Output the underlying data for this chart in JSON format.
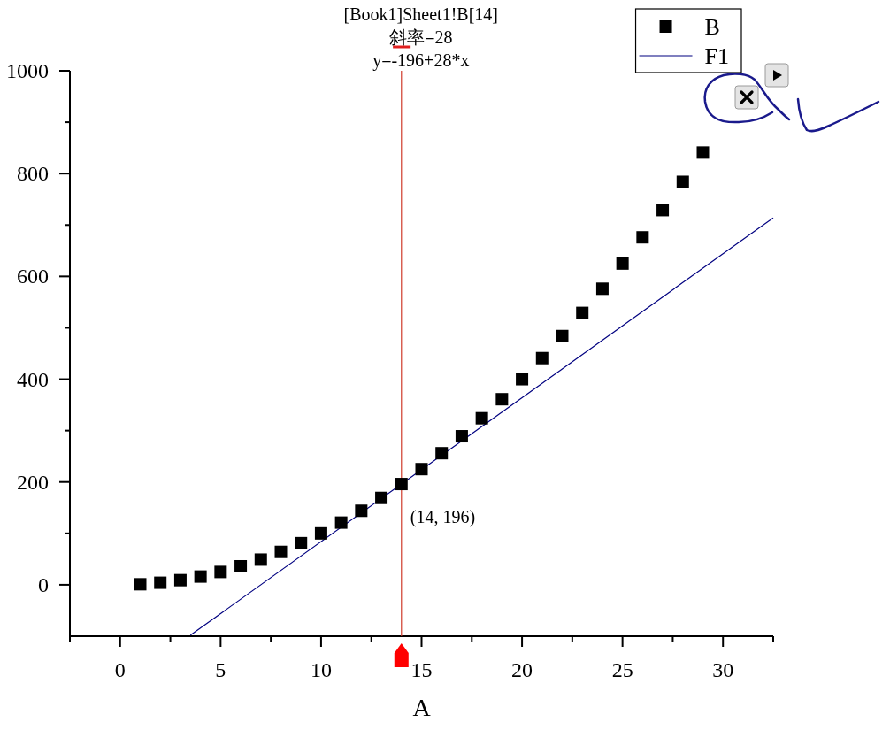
{
  "chart_data": {
    "type": "scatter",
    "xlabel": "A",
    "marker": "square",
    "legend": "top right",
    "x": [
      1,
      2,
      3,
      4,
      5,
      6,
      7,
      8,
      9,
      10,
      11,
      12,
      13,
      14,
      15,
      16,
      17,
      18,
      19,
      20,
      21,
      22,
      23,
      24,
      25,
      26,
      27,
      28,
      29
    ],
    "series": [
      {
        "name": "B",
        "color": "#000000",
        "values": [
          1,
          4,
          9,
          16,
          25,
          36,
          49,
          64,
          81,
          100,
          121,
          144,
          169,
          196,
          225,
          256,
          289,
          324,
          361,
          400,
          441,
          484,
          529,
          576,
          625,
          676,
          729,
          784,
          841
        ]
      },
      {
        "name": "F1",
        "type": "line",
        "color": "#000080",
        "marker": "none",
        "line_style": "solid",
        "x": [
          3.5,
          32.5
        ],
        "values": [
          -98,
          714
        ]
      }
    ],
    "xlim": [
      -2.5,
      32.5
    ],
    "ylim": [
      -100,
      1000
    ],
    "xticks": [
      {
        "value": -2.5,
        "label": null
      },
      0,
      {
        "value": 2.5,
        "label": null
      },
      5,
      {
        "value": 7.5,
        "label": null
      },
      10,
      {
        "value": 12.5,
        "label": null
      },
      15,
      {
        "value": 17.5,
        "label": null
      },
      20,
      {
        "value": 22.5,
        "label": null
      },
      25,
      {
        "value": 27.5,
        "label": null
      },
      30,
      {
        "value": 32.5,
        "label": null
      }
    ],
    "yticks": [
      0,
      {
        "value": 100,
        "label": null
      },
      200,
      {
        "value": 300,
        "label": null
      },
      400,
      {
        "value": 500,
        "label": null
      },
      600,
      {
        "value": 700,
        "label": null
      },
      800,
      {
        "value": 900,
        "label": null
      },
      1000
    ],
    "ref_lines": [
      {
        "axis": "x",
        "value": 14,
        "color": "#d03a2a"
      }
    ],
    "annotations": [
      "[Book1]Sheet1!B[14]",
      "斜率=28",
      "y=-196+28*x",
      {
        "text": "(14, 196)",
        "x": 14,
        "y": 196
      }
    ]
  }
}
